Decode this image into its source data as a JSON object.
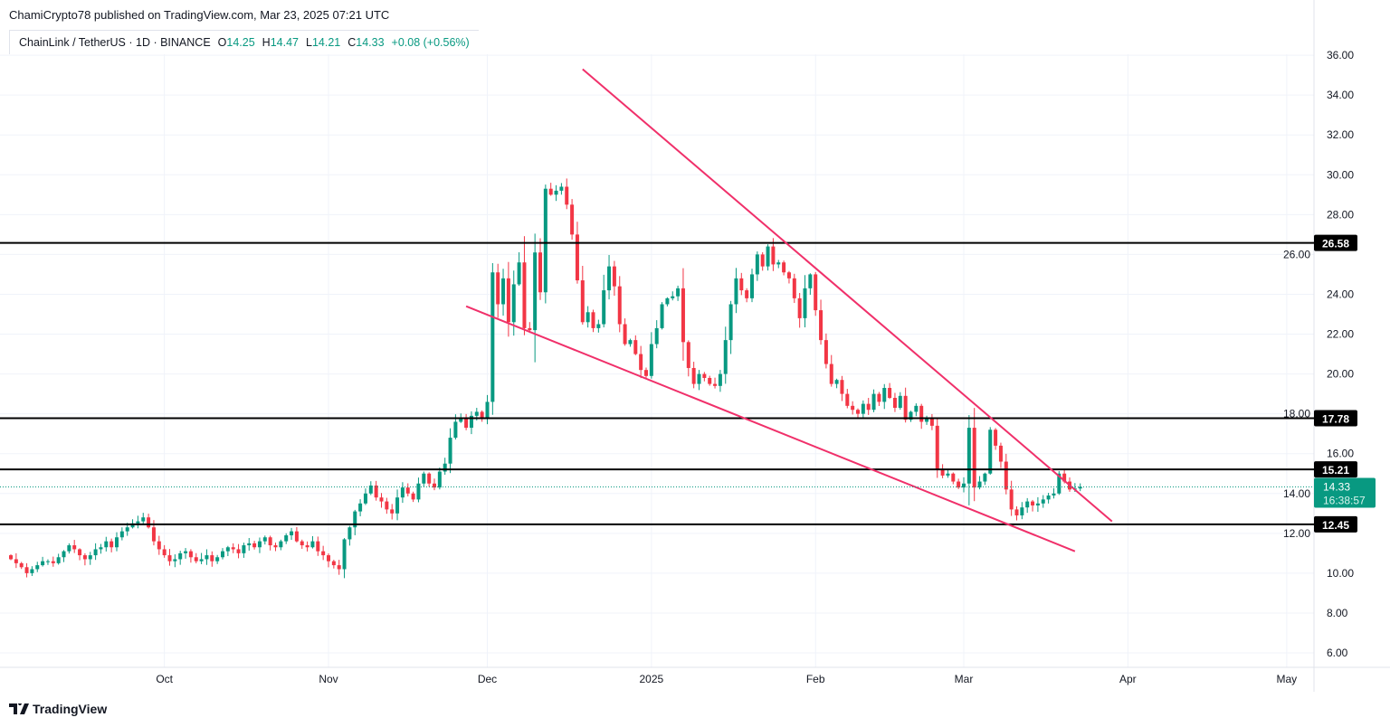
{
  "header": {
    "published": "ChamiCrypto78 published on TradingView.com, Mar 23, 2025 07:21 UTC",
    "symbol": "ChainLink / TetherUS · 1D · BINANCE",
    "open_label": "O",
    "open": "14.25",
    "high_label": "H",
    "high": "14.47",
    "low_label": "L",
    "low": "14.21",
    "close_label": "C",
    "close": "14.33",
    "change": "+0.08 (+0.56%)"
  },
  "branding": {
    "logo_text": "TradingView"
  },
  "colors": {
    "up": "#089981",
    "down": "#f23645",
    "trendline": "#f0306a",
    "level": "#000000",
    "grid": "#f0f3fa"
  },
  "chart_data": {
    "type": "candlestick",
    "title": "ChainLink / TetherUS 1D BINANCE",
    "start_date": "2024-09-02",
    "first_open": 10.9,
    "closes": [
      10.7,
      10.5,
      10.3,
      10.0,
      10.2,
      10.4,
      10.6,
      10.6,
      10.5,
      10.8,
      11.1,
      11.4,
      11.2,
      10.9,
      10.7,
      10.9,
      11.2,
      11.3,
      11.6,
      11.3,
      11.8,
      12.1,
      12.3,
      12.5,
      12.6,
      12.8,
      12.3,
      11.6,
      11.2,
      10.9,
      10.6,
      10.7,
      11.0,
      11.1,
      10.8,
      10.6,
      10.7,
      10.9,
      10.6,
      10.8,
      11.1,
      11.3,
      11.2,
      11.0,
      11.4,
      11.5,
      11.3,
      11.6,
      11.8,
      11.4,
      11.3,
      11.6,
      11.9,
      12.1,
      11.6,
      11.4,
      11.3,
      11.6,
      11.1,
      10.9,
      10.6,
      10.4,
      10.2,
      11.7,
      12.3,
      13.1,
      13.5,
      14.0,
      14.4,
      13.8,
      13.6,
      13.2,
      13.0,
      13.8,
      14.3,
      14.0,
      13.7,
      14.5,
      15.0,
      14.5,
      14.3,
      15.1,
      15.5,
      16.8,
      17.6,
      17.8,
      17.3,
      17.9,
      18.1,
      17.8,
      18.6,
      25.1,
      23.5,
      24.8,
      22.6,
      24.5,
      25.6,
      22.3,
      22.2,
      26.1,
      24.1,
      29.3,
      29.0,
      29.2,
      29.4,
      28.5,
      27.0,
      24.7,
      22.6,
      23.1,
      22.3,
      22.5,
      24.2,
      25.4,
      24.4,
      22.5,
      21.5,
      21.7,
      21.0,
      20.2,
      19.9,
      21.5,
      22.3,
      23.5,
      23.8,
      23.9,
      24.3,
      21.6,
      20.3,
      19.5,
      20.0,
      19.8,
      19.5,
      19.4,
      20.0,
      21.7,
      23.5,
      24.8,
      24.2,
      23.8,
      25.0,
      26.0,
      25.4,
      26.4,
      25.5,
      25.6,
      25.1,
      24.8,
      23.8,
      22.8,
      24.3,
      25.0,
      23.2,
      21.7,
      20.5,
      19.5,
      19.7,
      19.0,
      18.4,
      18.2,
      18.0,
      18.5,
      18.2,
      19.0,
      18.6,
      19.3,
      18.8,
      18.3,
      18.9,
      17.7,
      18.1,
      18.4,
      17.6,
      17.8,
      17.4,
      15.2,
      14.9,
      15.0,
      14.6,
      14.3,
      14.5,
      17.3,
      14.3,
      14.6,
      15.0,
      17.2,
      16.4,
      15.6,
      14.2,
      13.2,
      12.9,
      13.3,
      13.6,
      13.4,
      13.5,
      13.7,
      13.9,
      14.0,
      15.0,
      14.6,
      14.2,
      14.25,
      14.33
    ],
    "ylim": [
      5,
      37
    ],
    "y_ticks": [
      "6.00",
      "8.00",
      "10.00",
      "12.00",
      "14.00",
      "16.00",
      "18.00",
      "20.00",
      "22.00",
      "24.00",
      "26.00",
      "28.00",
      "30.00",
      "32.00",
      "34.00",
      "36.00"
    ],
    "x_ticks": [
      {
        "label": "Oct",
        "day": 29
      },
      {
        "label": "Nov",
        "day": 60
      },
      {
        "label": "Dec",
        "day": 90
      },
      {
        "label": "2025",
        "day": 121
      },
      {
        "label": "Feb",
        "day": 152
      },
      {
        "label": "Mar",
        "day": 180
      },
      {
        "label": "Apr",
        "day": 211
      },
      {
        "label": "May",
        "day": 241
      }
    ],
    "levels": [
      {
        "label": "26.58",
        "price": 26.58
      },
      {
        "label": "17.78",
        "price": 17.78
      },
      {
        "label": "15.21",
        "price": 15.21
      },
      {
        "label": "12.45",
        "price": 12.45
      }
    ],
    "trendlines": [
      {
        "name": "upper",
        "from": {
          "day": 108,
          "price": 35.3
        },
        "to": {
          "day": 208,
          "price": 12.6
        }
      },
      {
        "name": "lower",
        "from": {
          "day": 86,
          "price": 23.4
        },
        "to": {
          "day": 201,
          "price": 11.1
        }
      }
    ],
    "last_price": {
      "label": "14.33",
      "price": 14.33,
      "countdown": "16:38:57"
    }
  }
}
